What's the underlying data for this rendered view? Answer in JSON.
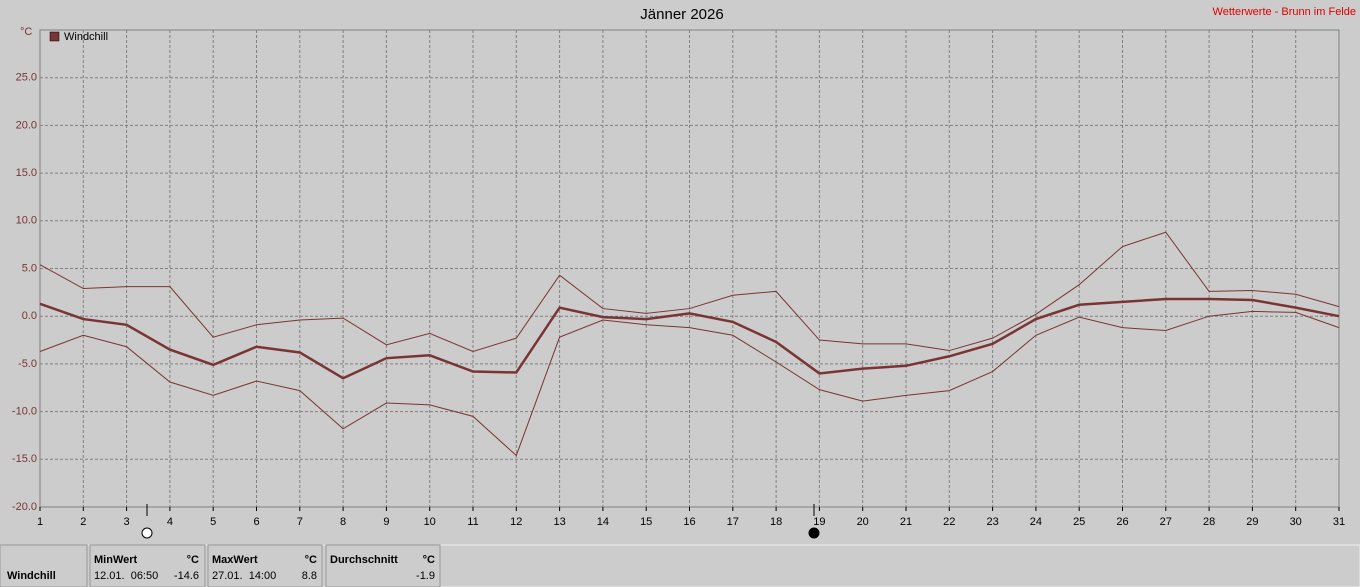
{
  "chart_data": {
    "type": "line",
    "title": "Jänner 2026",
    "source": "Wetterwerte - Brunn im Felde",
    "y_unit": "°C",
    "x": [
      1,
      2,
      3,
      4,
      5,
      6,
      7,
      8,
      9,
      10,
      11,
      12,
      13,
      14,
      15,
      16,
      17,
      18,
      19,
      20,
      21,
      22,
      23,
      24,
      25,
      26,
      27,
      28,
      29,
      30,
      31
    ],
    "xlim": [
      1,
      31
    ],
    "xticks": [
      1,
      2,
      3,
      4,
      5,
      6,
      7,
      8,
      9,
      10,
      11,
      12,
      13,
      14,
      15,
      16,
      17,
      18,
      19,
      20,
      21,
      22,
      23,
      24,
      25,
      26,
      27,
      28,
      29,
      30,
      31
    ],
    "ylim": [
      -20,
      30
    ],
    "yticks": [
      {
        "value": -20,
        "label": "-20.0"
      },
      {
        "value": -15,
        "label": "-15.0"
      },
      {
        "value": -10,
        "label": "-10.0"
      },
      {
        "value": -5,
        "label": "-5.0"
      },
      {
        "value": 0,
        "label": "0.0"
      },
      {
        "value": 5,
        "label": "5.0"
      },
      {
        "value": 10,
        "label": "10.0"
      },
      {
        "value": 15,
        "label": "15.0"
      },
      {
        "value": 20,
        "label": "20.0"
      },
      {
        "value": 25,
        "label": "25.0"
      }
    ],
    "grid": true,
    "series": [
      {
        "name": "Windchill",
        "color": "#7a3434",
        "values": [
          1.3,
          -0.3,
          -0.9,
          -3.5,
          -5.1,
          -3.2,
          -3.8,
          -6.5,
          -4.4,
          -4.1,
          -5.8,
          -5.9,
          0.9,
          -0.1,
          -0.3,
          0.3,
          -0.6,
          -2.7,
          -6.0,
          -5.5,
          -5.2,
          -4.2,
          -2.9,
          -0.3,
          1.2,
          1.5,
          1.8,
          1.8,
          1.7,
          0.9,
          0.0
        ]
      },
      {
        "color": "#7a3434",
        "values": [
          5.4,
          2.9,
          3.1,
          3.1,
          -2.2,
          -0.9,
          -0.4,
          -0.2,
          -3.0,
          -1.8,
          -3.7,
          -2.3,
          4.3,
          0.8,
          0.3,
          0.8,
          2.2,
          2.6,
          -2.5,
          -2.9,
          -2.9,
          -3.6,
          -2.3,
          0.2,
          3.3,
          7.3,
          8.8,
          2.6,
          2.7,
          2.3,
          1.0
        ]
      },
      {
        "color": "#7a3434",
        "values": [
          -3.7,
          -2.0,
          -3.2,
          -6.9,
          -8.3,
          -6.8,
          -7.8,
          -11.8,
          -9.1,
          -9.3,
          -10.5,
          -14.6,
          -2.2,
          -0.4,
          -0.9,
          -1.2,
          -2.0,
          -4.8,
          -7.7,
          -8.9,
          -8.3,
          -7.8,
          -5.8,
          -2.0,
          -0.1,
          -1.2,
          -1.5,
          0.0,
          0.5,
          0.4,
          -1.2
        ]
      }
    ]
  },
  "summary": {
    "label": "Windchill",
    "min": {
      "header": "MinWert",
      "unit": "°C",
      "time": "12.01.  06:50",
      "value": -14.6
    },
    "max": {
      "header": "MaxWert",
      "unit": "°C",
      "time": "27.01.  14:00",
      "value": 8.8
    },
    "mean": {
      "header": "Durchschnitt",
      "unit": "°C",
      "value": -1.9
    }
  }
}
